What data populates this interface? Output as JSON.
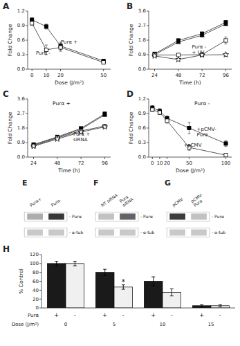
{
  "chart_data": [
    {
      "type": "line",
      "title": "A",
      "x_label": "Dose (J/m²)",
      "y_label": "Fold Change",
      "x": [
        0,
        10,
        20,
        50
      ],
      "xlim": [
        -3,
        55
      ],
      "xticks": [
        0,
        10,
        20,
        50
      ],
      "ylim": [
        0,
        1.2
      ],
      "yticks": [
        {
          "value": 0,
          "label": "0.0"
        },
        0.3,
        0.6,
        0.9,
        1.2
      ],
      "series": [
        {
          "color": "#555555",
          "marker": "filled-square",
          "values": [
            1.02,
            0.88,
            0.48,
            0.17
          ],
          "errors": [
            0.04,
            0.05,
            0.08,
            0.03
          ]
        },
        {
          "color": "#555555",
          "marker": "open-square",
          "values": [
            0.95,
            0.4,
            0.45,
            0.14
          ],
          "errors": [
            0.04,
            0.1,
            0.08,
            0.02
          ]
        }
      ],
      "annotations": [
        "Purα +",
        "Purα -"
      ]
    },
    {
      "type": "line",
      "title": "B",
      "x_label": "Time (h)",
      "y_label": "Fold Change",
      "x": [
        24,
        48,
        72,
        96
      ],
      "xlim": [
        18,
        102
      ],
      "xticks": [
        24,
        48,
        72,
        96
      ],
      "ylim": [
        0,
        3.6
      ],
      "yticks": [
        {
          "value": 0,
          "label": "0.0"
        },
        0.9,
        1.8,
        2.7,
        3.6
      ],
      "series": [
        {
          "color": "#555555",
          "marker": "filled-square",
          "values": [
            0.95,
            1.78,
            2.2,
            2.9
          ],
          "errors": [
            0.06,
            0.08,
            0.1,
            0.12
          ]
        },
        {
          "color": "#555555",
          "marker": "filled-triangle",
          "values": [
            0.9,
            1.68,
            2.1,
            2.8
          ],
          "errors": [
            0.05,
            0.07,
            0.09,
            0.1
          ]
        },
        {
          "color": "#555555",
          "marker": "open-square",
          "values": [
            0.88,
            0.88,
            0.9,
            1.78
          ],
          "errors": [
            0.05,
            0.06,
            0.08,
            0.22
          ]
        },
        {
          "color": "#555555",
          "marker": "open-star",
          "values": [
            0.82,
            0.6,
            0.88,
            0.9
          ],
          "errors": [
            0.05,
            0.05,
            0.08,
            0.1
          ]
        }
      ],
      "annotations": [
        "Purα -\n+ UV"
      ]
    },
    {
      "type": "line",
      "title": "C",
      "subtitle": "Purα +",
      "x_label": "Time (h)",
      "y_label": "Fold Change",
      "x": [
        24,
        48,
        72,
        96
      ],
      "xlim": [
        18,
        102
      ],
      "xticks": [
        24,
        48,
        72,
        96
      ],
      "ylim": [
        0,
        3.6
      ],
      "yticks": [
        {
          "value": 0,
          "label": "0.0"
        },
        0.9,
        1.8,
        2.7,
        3.6
      ],
      "series": [
        {
          "color": "#555555",
          "marker": "filled-square",
          "values": [
            0.78,
            1.25,
            1.78,
            2.68
          ],
          "errors": [
            0.04,
            0.06,
            0.08,
            0.1
          ]
        },
        {
          "color": "#555555",
          "marker": "filled-triangle",
          "values": [
            0.75,
            1.22,
            1.72,
            2.62
          ],
          "errors": [
            0.04,
            0.05,
            0.07,
            0.09
          ]
        },
        {
          "color": "#555555",
          "marker": "open-square",
          "values": [
            0.7,
            1.18,
            1.62,
            1.92
          ],
          "errors": [
            0.04,
            0.05,
            0.06,
            0.08
          ]
        },
        {
          "color": "#555555",
          "marker": "open-star",
          "values": [
            0.67,
            1.12,
            1.55,
            1.87
          ],
          "errors": [
            0.04,
            0.05,
            0.06,
            0.07
          ]
        }
      ],
      "annotations": [
        "Purα +\nsiRNA"
      ]
    },
    {
      "type": "line",
      "title": "D",
      "subtitle": "Purα -",
      "x_label": "Dose (J/m²)",
      "y_label": "Fold Change",
      "x": [
        0,
        10,
        20,
        50,
        100
      ],
      "xlim": [
        -5,
        108
      ],
      "xticks": [
        0,
        10,
        20,
        50,
        100
      ],
      "ylim": [
        0,
        1.2
      ],
      "yticks": [
        {
          "value": 0,
          "label": "0.0"
        },
        0.3,
        0.6,
        0.9,
        1.2
      ],
      "series": [
        {
          "color": "#555555",
          "marker": "filled-square",
          "values": [
            1.02,
            0.95,
            0.8,
            0.6,
            0.28
          ],
          "errors": [
            0.04,
            0.05,
            0.05,
            0.12,
            0.06
          ]
        },
        {
          "color": "#555555",
          "marker": "open-square",
          "values": [
            0.98,
            0.92,
            0.75,
            0.2,
            0.04
          ],
          "errors": [
            0.04,
            0.04,
            0.05,
            0.06,
            0.02
          ]
        }
      ],
      "annotations": [
        "+pCMV-\nPurα",
        "+pCMV"
      ]
    },
    {
      "type": "heatmap",
      "title": "E",
      "columns": [
        "Purα+",
        "Purα-"
      ],
      "rows": [
        "- Purα",
        "- α-tub"
      ],
      "cells": [
        [
          0.38,
          0.92
        ],
        [
          0.25,
          0.25
        ]
      ]
    },
    {
      "type": "heatmap",
      "title": "F",
      "columns": [
        "NT siRNA",
        "Purα\nsiRNA"
      ],
      "rows": [
        "- Purα",
        "- α-tub"
      ],
      "cells": [
        [
          0.28,
          0.72
        ],
        [
          0.25,
          0.25
        ]
      ]
    },
    {
      "type": "heatmap",
      "title": "G",
      "columns": [
        "pCMV",
        "pCMV-\nPurα"
      ],
      "rows": [
        "- Purα",
        "- α-tub"
      ],
      "cells": [
        [
          0.9,
          0.28
        ],
        [
          0.25,
          0.25
        ]
      ]
    },
    {
      "type": "bar",
      "title": "H",
      "y_label": "% Control",
      "x_label": "Dose (J/m²)",
      "categories": [
        "0",
        "5",
        "10",
        "15"
      ],
      "series": [
        {
          "name": "+",
          "color": "#1a1a1a",
          "values": [
            100,
            80,
            60,
            5
          ],
          "errors": [
            5,
            7,
            10,
            2
          ]
        },
        {
          "name": "-",
          "color": "#f0f0f0",
          "values": [
            100,
            47,
            35,
            5
          ],
          "errors": [
            5,
            5,
            8,
            2
          ]
        }
      ],
      "ylim": [
        0,
        120
      ],
      "yticks": [
        0,
        20,
        40,
        60,
        80,
        100,
        120
      ],
      "annotations": [
        {
          "text": "Purα"
        },
        {
          "text": "*",
          "series": 1,
          "index": 1
        }
      ]
    }
  ]
}
